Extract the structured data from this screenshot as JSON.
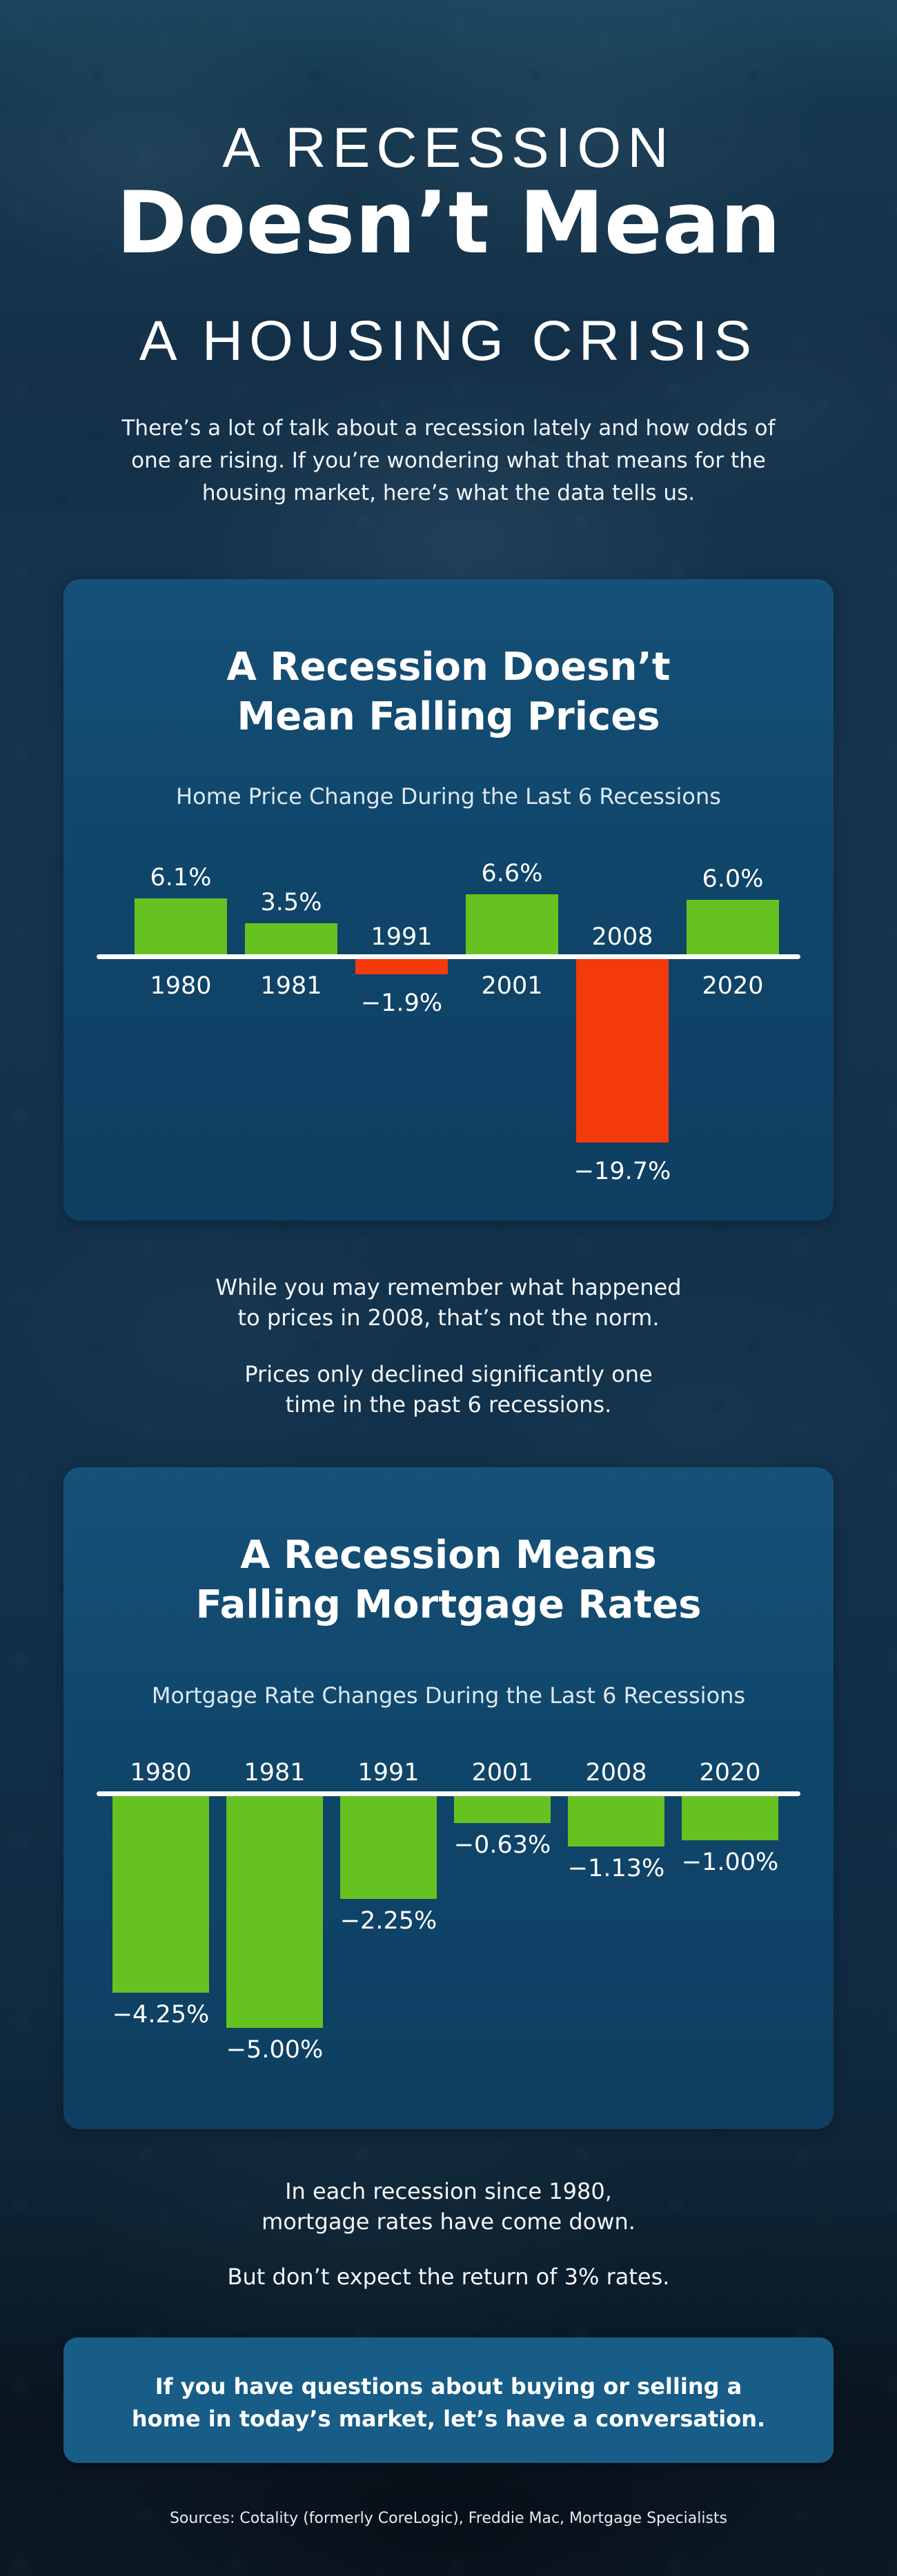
{
  "page": {
    "header": {
      "title_line1": "A RECESSION",
      "title_line2": "Doesn’t Mean",
      "title_line3": "A HOUSING CRISIS",
      "intro": "There’s a lot of talk about a recession lately and how odds of\none are rising. If you’re wondering what that means for the\nhousing market, here’s what the data tells us."
    },
    "mid_note": {
      "para1": "While you may remember what happened\nto prices in 2008, that’s not the norm.",
      "para2": "Prices only declined significantly one\ntime in the past 6 recessions."
    },
    "bottom_note": {
      "para1": "In each recession since 1980,\nmortgage rates have come down.",
      "para2": "But don’t expect the return of 3% rates."
    },
    "cta": {
      "text": "If you have questions about buying or selling a\nhome in today’s market, let’s have a conversation."
    },
    "footer": {
      "sources": "Sources: Cotality (formerly CoreLogic), Freddie Mac, Mortgage Specialists"
    },
    "colors": {
      "background_navy": "#13304a",
      "card_blue": "#10466b",
      "cta_blue": "#175d88",
      "positive_green": "#65c221",
      "negative_red": "#f43a0b",
      "axis_white": "#ffffff",
      "text_white": "#ffffff",
      "text_muted": "#dce8f0"
    }
  },
  "chart_data": [
    {
      "type": "bar",
      "title": "A Recession Doesn’t\nMean Falling Prices",
      "subtitle": "Home Price Change During the Last 6 Recessions",
      "categories": [
        "1980",
        "1981",
        "1991",
        "2001",
        "2008",
        "2020"
      ],
      "values": [
        6.1,
        3.5,
        -1.9,
        6.6,
        -19.7,
        6.0
      ],
      "value_labels": [
        "6.1%",
        "3.5%",
        "−1.9%",
        "6.6%",
        "−19.7%",
        "6.0%"
      ],
      "positive_color": "#65c221",
      "negative_color": "#f43a0b",
      "xlabel": "",
      "ylabel": "",
      "ylim": [
        -22,
        8
      ],
      "grid": false,
      "legend": "none",
      "baseline": 0
    },
    {
      "type": "bar",
      "title": "A Recession Means\nFalling Mortgage Rates",
      "subtitle": "Mortgage Rate Changes During the Last 6 Recessions",
      "categories": [
        "1980",
        "1981",
        "1991",
        "2001",
        "2008",
        "2020"
      ],
      "values": [
        -4.25,
        -5.0,
        -2.25,
        -0.63,
        -1.13,
        -1.0
      ],
      "value_labels": [
        "−4.25%",
        "−5.00%",
        "−2.25%",
        "−0.63%",
        "−1.13%",
        "−1.00%"
      ],
      "positive_color": "#65c221",
      "negative_color": "#65c221",
      "xlabel": "",
      "ylabel": "",
      "ylim": [
        -6,
        1
      ],
      "grid": false,
      "legend": "none",
      "baseline": 0
    }
  ]
}
